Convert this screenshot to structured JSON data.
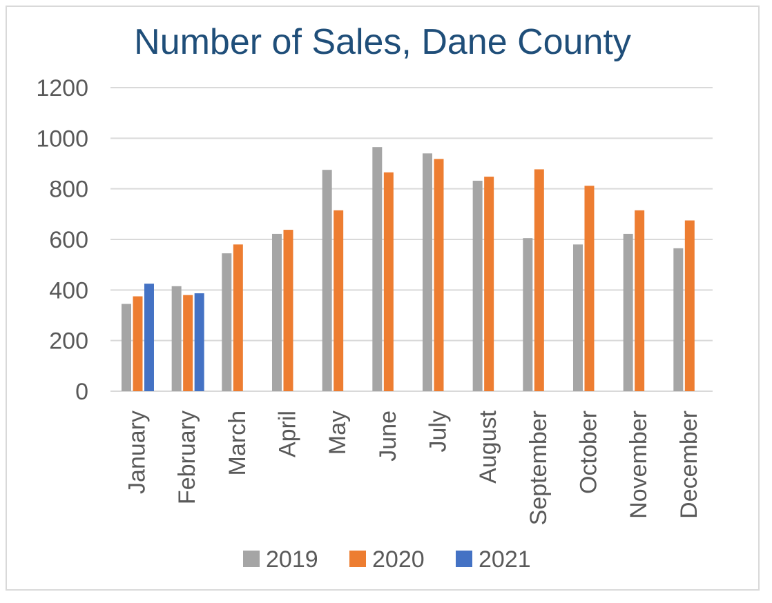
{
  "chart_data": {
    "type": "bar",
    "title": "Number of Sales, Dane County",
    "xlabel": "",
    "ylabel": "",
    "ylim": [
      0,
      1200
    ],
    "y_ticks": [
      0,
      200,
      400,
      600,
      800,
      1000,
      1200
    ],
    "grid": true,
    "legend_position": "bottom",
    "categories": [
      "January",
      "February",
      "March",
      "April",
      "May",
      "June",
      "July",
      "August",
      "September",
      "October",
      "November",
      "December"
    ],
    "series": [
      {
        "name": "2019",
        "color": "#a5a5a5",
        "values": [
          345,
          415,
          545,
          622,
          875,
          965,
          940,
          832,
          605,
          580,
          622,
          565
        ]
      },
      {
        "name": "2020",
        "color": "#ed7d31",
        "values": [
          375,
          380,
          580,
          638,
          715,
          865,
          918,
          848,
          877,
          812,
          715,
          675
        ]
      },
      {
        "name": "2021",
        "color": "#4472c4",
        "values": [
          425,
          387,
          null,
          null,
          null,
          null,
          null,
          null,
          null,
          null,
          null,
          null
        ]
      }
    ]
  }
}
